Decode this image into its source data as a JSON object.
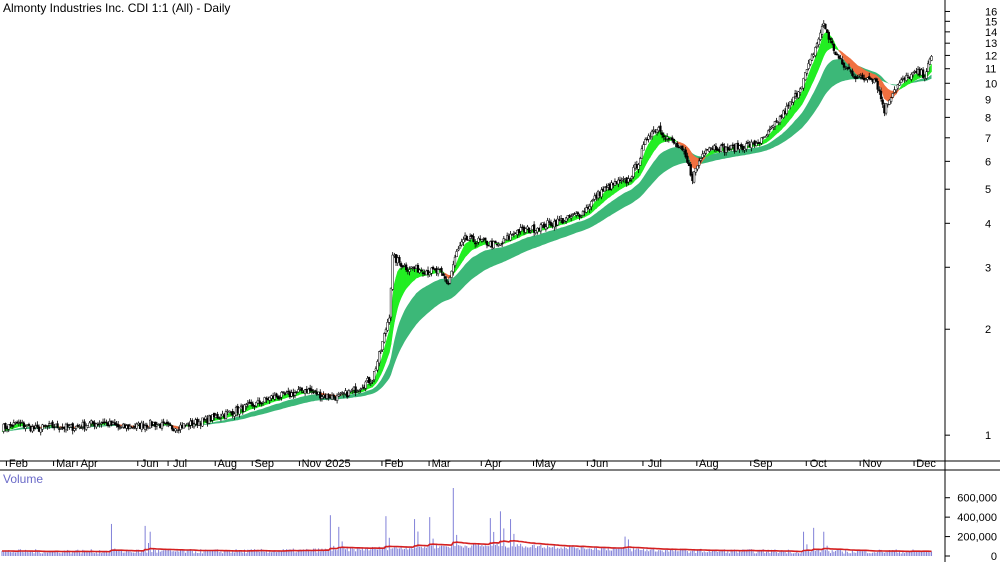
{
  "chart_data": [
    {
      "type": "candlestick",
      "title": "Almonty Industries Inc. CDI 1:1 (All) - Daily",
      "y_scale": "log",
      "ylim": [
        0.85,
        16.8
      ],
      "y_ticks": [
        "1",
        "2",
        "3",
        "4",
        "5",
        "6",
        "7",
        "8",
        "9",
        "10",
        "11",
        "12",
        "13",
        "14",
        "15",
        "16"
      ],
      "x_tick_labels": [
        "Feb",
        "Mar",
        "Apr",
        "Jun",
        "Jul",
        "Aug",
        "Sep",
        "Nov",
        "2025",
        "Feb",
        "Mar",
        "Apr",
        "May",
        "Jun",
        "Jul",
        "Aug",
        "Sep",
        "Oct",
        "Nov",
        "Dec"
      ],
      "price_series": [
        {
          "i": 0,
          "p": 1.05
        },
        {
          "i": 10,
          "p": 1.08
        },
        {
          "i": 20,
          "p": 1.04
        },
        {
          "i": 30,
          "p": 1.06
        },
        {
          "i": 40,
          "p": 1.05
        },
        {
          "i": 50,
          "p": 1.07
        },
        {
          "i": 60,
          "p": 1.09
        },
        {
          "i": 70,
          "p": 1.05
        },
        {
          "i": 80,
          "p": 1.06
        },
        {
          "i": 90,
          "p": 1.08
        },
        {
          "i": 100,
          "p": 1.05
        },
        {
          "i": 110,
          "p": 1.07
        },
        {
          "i": 120,
          "p": 1.1
        },
        {
          "i": 130,
          "p": 1.14
        },
        {
          "i": 140,
          "p": 1.18
        },
        {
          "i": 150,
          "p": 1.22
        },
        {
          "i": 160,
          "p": 1.28
        },
        {
          "i": 170,
          "p": 1.3
        },
        {
          "i": 180,
          "p": 1.35
        },
        {
          "i": 190,
          "p": 1.3
        },
        {
          "i": 200,
          "p": 1.28
        },
        {
          "i": 210,
          "p": 1.35
        },
        {
          "i": 220,
          "p": 1.45
        },
        {
          "i": 225,
          "p": 1.75
        },
        {
          "i": 230,
          "p": 2.2
        },
        {
          "i": 232,
          "p": 3.2
        },
        {
          "i": 240,
          "p": 3.0
        },
        {
          "i": 250,
          "p": 2.95
        },
        {
          "i": 260,
          "p": 2.9
        },
        {
          "i": 265,
          "p": 2.7
        },
        {
          "i": 270,
          "p": 3.3
        },
        {
          "i": 275,
          "p": 3.6
        },
        {
          "i": 285,
          "p": 3.55
        },
        {
          "i": 295,
          "p": 3.45
        },
        {
          "i": 305,
          "p": 3.8
        },
        {
          "i": 315,
          "p": 3.85
        },
        {
          "i": 325,
          "p": 4.0
        },
        {
          "i": 335,
          "p": 4.1
        },
        {
          "i": 345,
          "p": 4.3
        },
        {
          "i": 355,
          "p": 4.9
        },
        {
          "i": 365,
          "p": 5.2
        },
        {
          "i": 372,
          "p": 5.3
        },
        {
          "i": 378,
          "p": 6.0
        },
        {
          "i": 384,
          "p": 7.2
        },
        {
          "i": 390,
          "p": 7.5
        },
        {
          "i": 395,
          "p": 7.0
        },
        {
          "i": 400,
          "p": 6.7
        },
        {
          "i": 405,
          "p": 6.3
        },
        {
          "i": 410,
          "p": 5.4
        },
        {
          "i": 414,
          "p": 6.0
        },
        {
          "i": 418,
          "p": 6.6
        },
        {
          "i": 424,
          "p": 6.6
        },
        {
          "i": 430,
          "p": 6.5
        },
        {
          "i": 438,
          "p": 6.6
        },
        {
          "i": 446,
          "p": 6.7
        },
        {
          "i": 452,
          "p": 6.9
        },
        {
          "i": 458,
          "p": 7.5
        },
        {
          "i": 464,
          "p": 8.2
        },
        {
          "i": 470,
          "p": 9.0
        },
        {
          "i": 475,
          "p": 10.0
        },
        {
          "i": 480,
          "p": 11.5
        },
        {
          "i": 484,
          "p": 13.0
        },
        {
          "i": 488,
          "p": 14.8
        },
        {
          "i": 491,
          "p": 13.5
        },
        {
          "i": 495,
          "p": 12.2
        },
        {
          "i": 499,
          "p": 11.3
        },
        {
          "i": 503,
          "p": 10.9
        },
        {
          "i": 507,
          "p": 10.5
        },
        {
          "i": 511,
          "p": 10.2
        },
        {
          "i": 515,
          "p": 10.5
        },
        {
          "i": 519,
          "p": 10.2
        },
        {
          "i": 524,
          "p": 8.4
        },
        {
          "i": 529,
          "p": 9.5
        },
        {
          "i": 534,
          "p": 10.1
        },
        {
          "i": 539,
          "p": 10.5
        },
        {
          "i": 544,
          "p": 10.7
        },
        {
          "i": 548,
          "p": 10.6
        },
        {
          "i": 552,
          "p": 11.8
        }
      ],
      "bands": [
        {
          "name": "short-term band",
          "color_up": "#22ee22",
          "color_down": "#f07040"
        },
        {
          "name": "long-term band",
          "color": "#3cb878"
        }
      ],
      "grid": false
    },
    {
      "type": "bar",
      "title": "Volume",
      "y_ticks": [
        "0",
        "200,000",
        "400,000",
        "600,000"
      ],
      "ylim": [
        0,
        700000
      ],
      "volume_peaks": [
        {
          "i": 65,
          "v": 330000
        },
        {
          "i": 85,
          "v": 310000
        },
        {
          "i": 88,
          "v": 250000
        },
        {
          "i": 195,
          "v": 420000
        },
        {
          "i": 200,
          "v": 300000
        },
        {
          "i": 228,
          "v": 410000
        },
        {
          "i": 245,
          "v": 380000
        },
        {
          "i": 254,
          "v": 400000
        },
        {
          "i": 268,
          "v": 700000
        },
        {
          "i": 290,
          "v": 390000
        },
        {
          "i": 296,
          "v": 460000
        },
        {
          "i": 302,
          "v": 380000
        },
        {
          "i": 370,
          "v": 200000
        },
        {
          "i": 476,
          "v": 250000
        },
        {
          "i": 482,
          "v": 290000
        },
        {
          "i": 488,
          "v": 250000
        }
      ],
      "average_line_color": "#d42020",
      "bar_color": "#8080d8"
    }
  ]
}
